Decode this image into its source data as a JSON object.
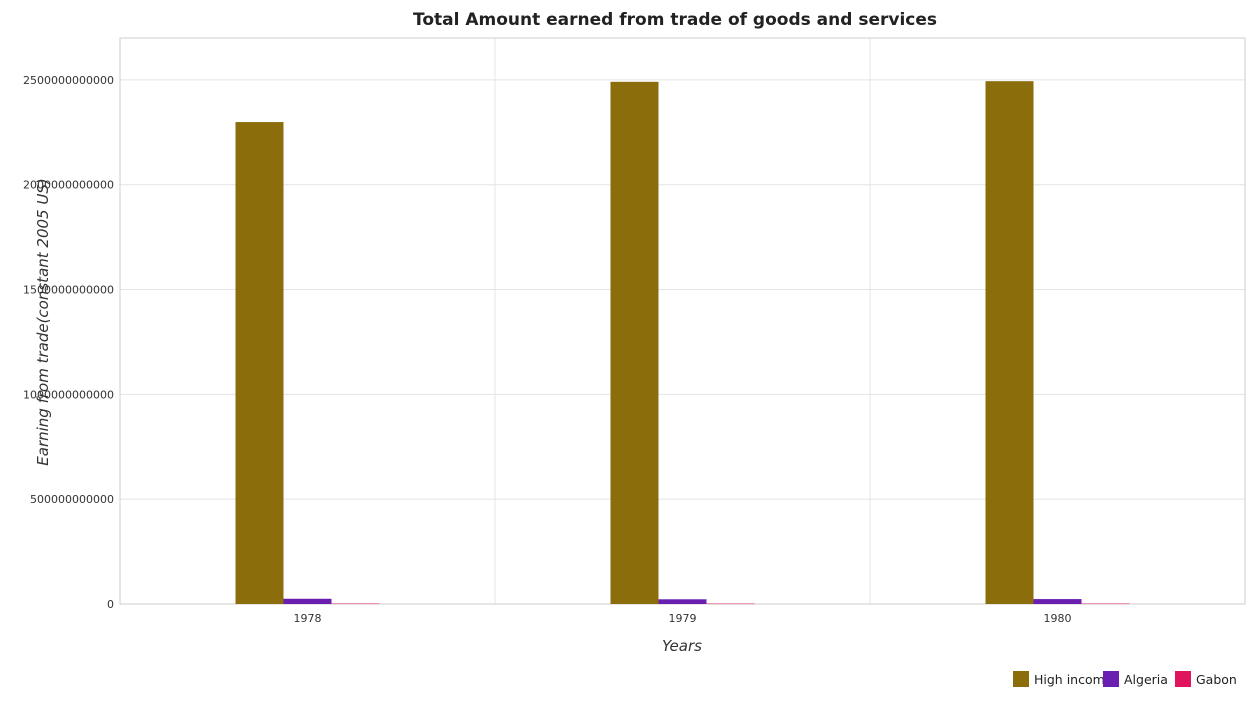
{
  "chart_data": {
    "type": "bar",
    "title": "Total Amount earned from trade of goods and services",
    "xlabel": "Years",
    "ylabel": "Earning from trade(constant 2005 US)",
    "categories": [
      "1978",
      "1979",
      "1980"
    ],
    "series": [
      {
        "name": "High income",
        "color": "#8b6e0b",
        "values": [
          2299000000000,
          2491000000000,
          2494000000000
        ]
      },
      {
        "name": "Algeria",
        "color": "#6b1fb1",
        "values": [
          25000000000,
          22500000000,
          23500000000
        ]
      },
      {
        "name": "Gabon",
        "color": "#e0145c",
        "values": [
          2200000000,
          2000000000,
          2100000000
        ]
      }
    ],
    "ylim": [
      0,
      2700000000000
    ],
    "yticks": [
      0,
      500000000000,
      1000000000000,
      1500000000000,
      2000000000000,
      2500000000000
    ],
    "ytick_labels": [
      "0",
      "500000000000",
      "1000000000000",
      "1500000000000",
      "2000000000000",
      "2500000000000"
    ],
    "grid": true,
    "legend_position": "bottom-right"
  }
}
